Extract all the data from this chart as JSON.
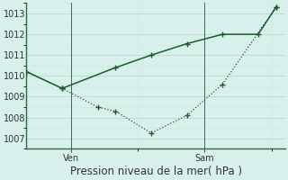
{
  "title": "Pression niveau de la mer( hPa )",
  "ylim": [
    1006.5,
    1013.5
  ],
  "yticks": [
    1007,
    1008,
    1009,
    1010,
    1011,
    1012,
    1013
  ],
  "bg_color": "#d8f0ec",
  "grid_color_major": "#c0ddd5",
  "grid_color_minor": "#d0e8e0",
  "line_color": "#1a5c2a",
  "line1_x": [
    0,
    2,
    4,
    5,
    7,
    9,
    11,
    14
  ],
  "line1_y": [
    1010.2,
    1009.4,
    1008.5,
    1008.3,
    1007.25,
    1008.1,
    1009.6,
    1013.3
  ],
  "line2_x": [
    0,
    2,
    5,
    7,
    9,
    11,
    13,
    14
  ],
  "line2_y": [
    1010.2,
    1009.4,
    1010.4,
    1011.0,
    1011.55,
    1012.0,
    1012.0,
    1013.3
  ],
  "ven_x": 2.5,
  "sam_x": 10.0,
  "xlim": [
    0,
    14.5
  ],
  "xtick_positions": [
    2.5,
    10.0
  ],
  "xtick_labels": [
    "Ven",
    "Sam"
  ],
  "vline_x1": 2.5,
  "vline_x2": 10.0,
  "title_fontsize": 8.5,
  "tick_fontsize": 7,
  "marker_size": 3
}
